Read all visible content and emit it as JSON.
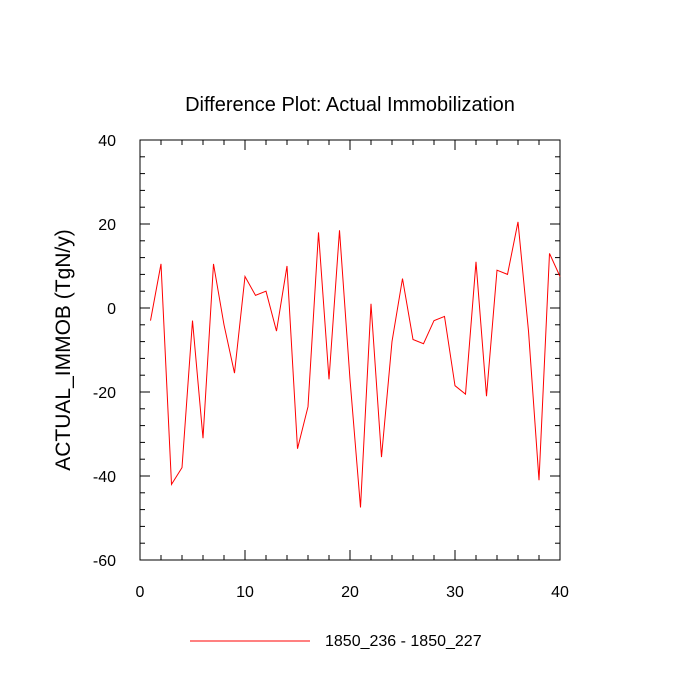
{
  "chart_data": {
    "type": "line",
    "title": "Difference Plot: Actual Immobilization",
    "xlabel": "",
    "ylabel": "ACTUAL_IMMOB  (TgN/y)",
    "xlim": [
      0,
      40
    ],
    "ylim": [
      -60,
      40
    ],
    "x_ticks": [
      0,
      10,
      20,
      30,
      40
    ],
    "y_ticks": [
      40,
      20,
      0,
      -20,
      -40,
      -60
    ],
    "x_minor_step": 2,
    "y_minor_step": 4,
    "grid": false,
    "legend_position": "bottom",
    "colors": {
      "series": "#ff0000",
      "axes": "#000000"
    },
    "series": [
      {
        "name": "1850_236 - 1850_227",
        "x": [
          1,
          2,
          3,
          4,
          5,
          6,
          7,
          8,
          9,
          10,
          11,
          12,
          13,
          14,
          15,
          16,
          17,
          18,
          19,
          20,
          21,
          22,
          23,
          24,
          25,
          26,
          27,
          28,
          29,
          30,
          31,
          32,
          33,
          34,
          35,
          36,
          37,
          38,
          39,
          40
        ],
        "values": [
          -3,
          10.5,
          -42,
          -38,
          -3,
          -31,
          10.5,
          -4,
          -15.5,
          7.5,
          3,
          4,
          -5.5,
          10,
          -33.5,
          -23.5,
          18,
          -17,
          18.5,
          -17,
          -47.5,
          1,
          -35.5,
          -8,
          7,
          -7.5,
          -8.5,
          -3,
          -2,
          -18.5,
          -20.5,
          11,
          -21,
          9,
          8,
          20.5,
          -5.5,
          -41,
          13,
          7.5
        ]
      }
    ]
  }
}
